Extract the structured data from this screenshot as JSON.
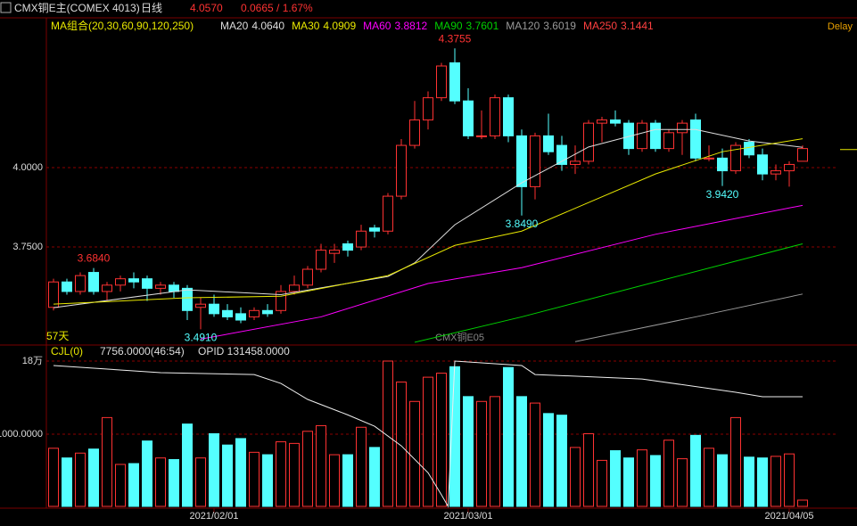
{
  "chart_data": {
    "type": "candlestick",
    "header": {
      "symbol": "CMX铜E主(COMEX 4013)",
      "period": "日线",
      "price": {
        "value": 4.057,
        "label": "4.0570"
      },
      "change": "0.0665 / 1.67%",
      "status": "Delay"
    },
    "ma_group": "MA组合(20,30,60,90,120,250)",
    "ylim": [
      3.447,
      4.466
    ],
    "yticks": [
      {
        "value": 4,
        "label": "4.0000"
      },
      {
        "value": 3.75,
        "label": "3.7500"
      }
    ],
    "ohlc": {
      "open": [
        3.56,
        3.64,
        3.61,
        3.67,
        3.61,
        3.63,
        3.65,
        3.65,
        3.62,
        3.63,
        3.62,
        3.56,
        3.57,
        3.55,
        3.54,
        3.53,
        3.55,
        3.55,
        3.61,
        3.63,
        3.68,
        3.73,
        3.76,
        3.75,
        3.81,
        3.8,
        3.91,
        4.07,
        4.15,
        4.22,
        4.33,
        4.21,
        4.1,
        4.1,
        4.22,
        4.1,
        3.94,
        4.1,
        4.07,
        4.01,
        4.02,
        4.14,
        4.15,
        4.14,
        4.06,
        4.14,
        4.06,
        4.11,
        4.15,
        4.03,
        4.03,
        3.99,
        4.08,
        4.04,
        3.98,
        3.99,
        4.02
      ],
      "high": [
        3.65,
        3.65,
        3.67,
        3.684,
        3.64,
        3.66,
        3.67,
        3.66,
        3.64,
        3.64,
        3.63,
        3.59,
        3.6,
        3.57,
        3.56,
        3.56,
        3.57,
        3.63,
        3.66,
        3.69,
        3.76,
        3.76,
        3.77,
        3.82,
        3.82,
        3.92,
        4.09,
        4.21,
        4.24,
        4.33,
        4.3755,
        4.25,
        4.18,
        4.23,
        4.23,
        4.12,
        4.11,
        4.17,
        4.1,
        4.07,
        4.15,
        4.16,
        4.18,
        4.15,
        4.15,
        4.15,
        4.12,
        4.15,
        4.17,
        4.07,
        4.06,
        4.08,
        4.09,
        4.06,
        4.01,
        4.02,
        4.07
      ],
      "low": [
        3.55,
        3.6,
        3.6,
        3.6,
        3.58,
        3.61,
        3.62,
        3.58,
        3.6,
        3.59,
        3.52,
        3.491,
        3.53,
        3.52,
        3.51,
        3.52,
        3.53,
        3.54,
        3.6,
        3.62,
        3.67,
        3.7,
        3.72,
        3.74,
        3.78,
        3.79,
        3.9,
        4.06,
        4.12,
        4.21,
        4.2,
        4.09,
        4.09,
        4.09,
        4.08,
        3.849,
        3.9,
        4.04,
        3.99,
        3.98,
        4.01,
        4.08,
        4.13,
        4.04,
        4.05,
        4.05,
        4.05,
        4.04,
        4.02,
        4.02,
        3.942,
        3.98,
        4.03,
        3.96,
        3.96,
        3.94,
        4.03
      ],
      "close": [
        3.64,
        3.61,
        3.66,
        3.61,
        3.63,
        3.65,
        3.64,
        3.62,
        3.63,
        3.61,
        3.55,
        3.57,
        3.54,
        3.53,
        3.52,
        3.55,
        3.54,
        3.61,
        3.63,
        3.68,
        3.74,
        3.74,
        3.74,
        3.8,
        3.8,
        3.91,
        4.07,
        4.15,
        4.22,
        4.32,
        4.21,
        4.1,
        4.1,
        4.22,
        4.1,
        3.94,
        4.1,
        4.05,
        4.01,
        4.02,
        4.14,
        4.15,
        4.14,
        4.06,
        4.14,
        4.06,
        4.11,
        4.14,
        4.03,
        4.03,
        3.99,
        4.07,
        4.04,
        3.98,
        3.99,
        4.01,
        4.06
      ]
    },
    "annotations": [
      {
        "index": 30,
        "value": 4.3755,
        "label": "4.3755"
      },
      {
        "index": 3,
        "value": 3.684,
        "label": "3.6840"
      },
      {
        "index": 11,
        "value": 3.491,
        "label": "3.4910"
      },
      {
        "index": 35,
        "value": 3.849,
        "label": "3.8490"
      },
      {
        "index": 50,
        "value": 3.942,
        "label": "3.9420"
      }
    ],
    "series": [
      {
        "name": "MA20",
        "color": "#dddddd",
        "current": {
          "value": 4.064,
          "label": "4.0640"
        },
        "x": [
          0,
          10,
          17,
          25,
          27,
          30,
          35,
          40,
          45,
          48,
          52,
          56
        ],
        "values": [
          3.559,
          3.615,
          3.6,
          3.657,
          3.7,
          3.82,
          3.952,
          4.065,
          4.12,
          4.12,
          4.084,
          4.064
        ]
      },
      {
        "name": "MA30",
        "color": "#e8e800",
        "current": {
          "value": 4.0909,
          "label": "4.0909"
        },
        "x": [
          0,
          10,
          17,
          25,
          30,
          35,
          40,
          45,
          50,
          56
        ],
        "values": [
          3.57,
          3.59,
          3.595,
          3.66,
          3.755,
          3.8,
          3.89,
          3.98,
          4.05,
          4.0909
        ]
      },
      {
        "name": "MA60",
        "color": "#ff00ff",
        "current": {
          "value": 3.8812,
          "label": "3.8812"
        },
        "x": [
          11,
          20,
          28,
          35,
          45,
          56
        ],
        "values": [
          3.46,
          3.53,
          3.635,
          3.685,
          3.79,
          3.8812
        ]
      },
      {
        "name": "MA90",
        "color": "#00d000",
        "current": {
          "value": 3.7601,
          "label": "3.7601"
        },
        "x": [
          27,
          35,
          45,
          56
        ],
        "values": [
          3.45,
          3.53,
          3.64,
          3.7601
        ]
      },
      {
        "name": "MA120",
        "color": "#999999",
        "current": {
          "value": 3.6019,
          "label": "3.6019"
        },
        "x": [
          39,
          48,
          56
        ],
        "values": [
          3.452,
          3.53,
          3.6019
        ]
      },
      {
        "name": "MA250",
        "color": "#ff4040",
        "current": {
          "value": 3.1441,
          "label": "3.1441"
        },
        "x": [],
        "values": []
      }
    ],
    "bar_count": "57天",
    "contract": "CMX铜E05",
    "volume": {
      "label": "CJL(0)",
      "current": "7756.0000(46:54)",
      "ylim": [
        0,
        180000
      ],
      "yticks": [
        {
          "value": 180000,
          "label": "18万"
        }
      ],
      "mid_label": "1000.0000",
      "values": [
        72000,
        60000,
        66000,
        71000,
        110000,
        52000,
        53000,
        81000,
        60000,
        58000,
        102000,
        60000,
        90000,
        76000,
        84000,
        67000,
        64000,
        80000,
        78000,
        93000,
        100000,
        64000,
        64000,
        98000,
        73000,
        180000,
        154000,
        130000,
        160000,
        165000,
        173000,
        136000,
        130000,
        136000,
        172000,
        136000,
        128000,
        115000,
        113000,
        73000,
        90000,
        57000,
        69000,
        60000,
        70000,
        63000,
        82000,
        59000,
        88000,
        72000,
        64000,
        110000,
        61000,
        60000,
        62000,
        65000,
        7756
      ]
    },
    "opid": {
      "label": "OPID 131458.0000",
      "y2lim": [
        50000,
        158000
      ],
      "x": [
        0,
        8,
        15,
        17,
        19,
        22,
        24,
        26,
        28,
        29,
        29.5,
        30,
        35,
        36,
        44,
        51,
        53,
        56
      ],
      "values": [
        154700,
        149400,
        148000,
        141400,
        129500,
        118000,
        109600,
        95000,
        75000,
        58600,
        50000,
        158000,
        154700,
        148000,
        144700,
        134800,
        131500,
        131458
      ]
    },
    "x_labels": [
      {
        "index": 12,
        "label": "2021/02/01"
      },
      {
        "index": 31,
        "label": "2021/03/01"
      },
      {
        "index": 55,
        "label": "2021/04/05"
      }
    ]
  }
}
